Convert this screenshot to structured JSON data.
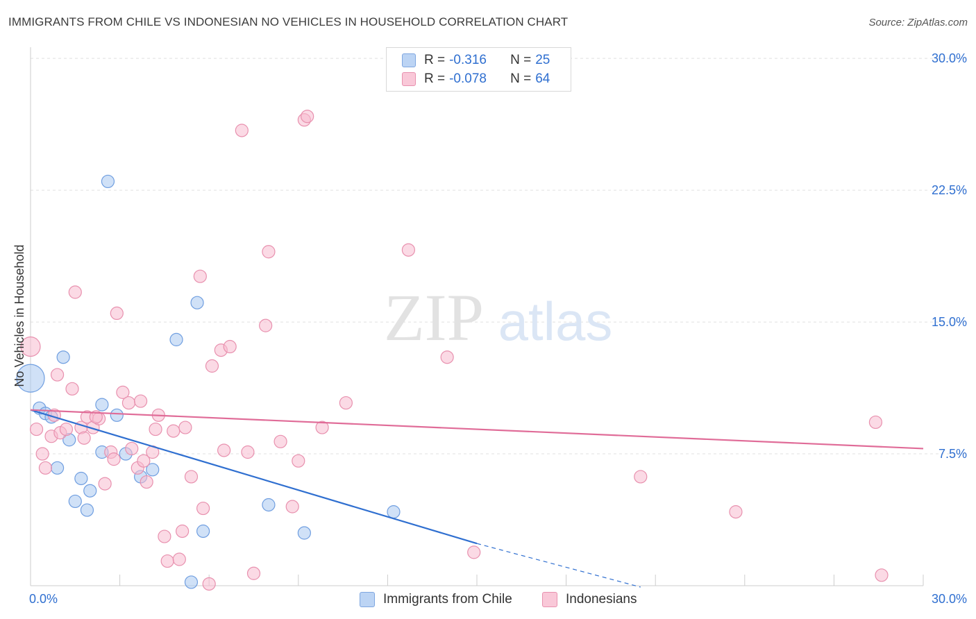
{
  "title": "IMMIGRANTS FROM CHILE VS INDONESIAN NO VEHICLES IN HOUSEHOLD CORRELATION CHART",
  "source": "Source: ZipAtlas.com",
  "watermark": {
    "zip": "ZIP",
    "atlas": "atlas"
  },
  "legend": {
    "rows": [
      {
        "r_label": "R =",
        "r_value": "-0.316",
        "n_label": "N =",
        "n_value": "25"
      },
      {
        "r_label": "R =",
        "r_value": "-0.078",
        "n_label": "N =",
        "n_value": "64"
      }
    ]
  },
  "chart_data": {
    "type": "scatter",
    "ylabel": "No Vehicles in Household",
    "xlabel": "",
    "xlim": [
      0,
      30
    ],
    "ylim": [
      0,
      30
    ],
    "x_tick_labels": [
      {
        "value": 0,
        "label": "0.0%"
      },
      {
        "value": 30,
        "label": "30.0%"
      }
    ],
    "y_tick_labels": [
      {
        "value": 7.5,
        "label": "7.5%"
      },
      {
        "value": 15,
        "label": "15.0%"
      },
      {
        "value": 22.5,
        "label": "22.5%"
      },
      {
        "value": 30,
        "label": "30.0%"
      }
    ],
    "grid": true,
    "series": [
      {
        "name": "Immigrants from Chile",
        "color": "#a9c8f0",
        "stroke": "#6f9ee0",
        "trend_color": "#2f6fd0",
        "trend": {
          "x_start": 0,
          "y_start": 10.0,
          "x_end": 15,
          "y_end": 2.4,
          "dashed_to_x": 20.5,
          "dashed_to_y": -0.4
        },
        "points": [
          {
            "x": 0.0,
            "y": 11.8,
            "size": "large"
          },
          {
            "x": 0.3,
            "y": 10.1
          },
          {
            "x": 0.5,
            "y": 9.8
          },
          {
            "x": 0.7,
            "y": 9.6
          },
          {
            "x": 0.9,
            "y": 6.7
          },
          {
            "x": 1.1,
            "y": 13.0
          },
          {
            "x": 1.3,
            "y": 8.3
          },
          {
            "x": 1.7,
            "y": 6.1
          },
          {
            "x": 1.5,
            "y": 4.8
          },
          {
            "x": 1.9,
            "y": 4.3
          },
          {
            "x": 2.0,
            "y": 5.4
          },
          {
            "x": 2.4,
            "y": 10.3
          },
          {
            "x": 2.6,
            "y": 23.0
          },
          {
            "x": 2.9,
            "y": 9.7
          },
          {
            "x": 2.4,
            "y": 7.6
          },
          {
            "x": 3.2,
            "y": 7.5
          },
          {
            "x": 3.7,
            "y": 6.2
          },
          {
            "x": 4.1,
            "y": 6.6
          },
          {
            "x": 4.9,
            "y": 14.0
          },
          {
            "x": 5.6,
            "y": 16.1
          },
          {
            "x": 5.8,
            "y": 3.1
          },
          {
            "x": 5.4,
            "y": 0.2
          },
          {
            "x": 8.0,
            "y": 4.6
          },
          {
            "x": 9.2,
            "y": 3.0
          },
          {
            "x": 12.2,
            "y": 4.2
          }
        ]
      },
      {
        "name": "Indonesians",
        "color": "#f7bcd0",
        "stroke": "#e890ae",
        "trend_color": "#e06c98",
        "trend": {
          "x_start": 0,
          "y_start": 10.0,
          "x_end": 30,
          "y_end": 7.8
        },
        "points": [
          {
            "x": 0.0,
            "y": 13.6,
            "size": "medium"
          },
          {
            "x": 0.2,
            "y": 8.9
          },
          {
            "x": 0.4,
            "y": 7.5
          },
          {
            "x": 0.5,
            "y": 6.7
          },
          {
            "x": 0.7,
            "y": 8.5
          },
          {
            "x": 0.8,
            "y": 9.7
          },
          {
            "x": 0.9,
            "y": 12.0
          },
          {
            "x": 1.0,
            "y": 8.7
          },
          {
            "x": 1.2,
            "y": 8.9
          },
          {
            "x": 1.4,
            "y": 11.2
          },
          {
            "x": 1.5,
            "y": 16.7
          },
          {
            "x": 1.7,
            "y": 9.0
          },
          {
            "x": 1.8,
            "y": 8.4
          },
          {
            "x": 1.9,
            "y": 9.6
          },
          {
            "x": 2.1,
            "y": 9.0
          },
          {
            "x": 2.3,
            "y": 9.5
          },
          {
            "x": 2.5,
            "y": 5.8
          },
          {
            "x": 2.7,
            "y": 7.6
          },
          {
            "x": 2.8,
            "y": 7.2
          },
          {
            "x": 2.9,
            "y": 15.5
          },
          {
            "x": 3.1,
            "y": 11.0
          },
          {
            "x": 3.3,
            "y": 10.4
          },
          {
            "x": 3.4,
            "y": 7.8
          },
          {
            "x": 3.6,
            "y": 6.7
          },
          {
            "x": 3.7,
            "y": 10.5
          },
          {
            "x": 3.8,
            "y": 7.1
          },
          {
            "x": 3.9,
            "y": 5.9
          },
          {
            "x": 4.1,
            "y": 7.6
          },
          {
            "x": 4.2,
            "y": 8.9
          },
          {
            "x": 4.3,
            "y": 9.7
          },
          {
            "x": 4.5,
            "y": 2.8
          },
          {
            "x": 4.6,
            "y": 1.4
          },
          {
            "x": 4.8,
            "y": 8.8
          },
          {
            "x": 5.0,
            "y": 1.5
          },
          {
            "x": 5.1,
            "y": 3.1
          },
          {
            "x": 5.2,
            "y": 9.0
          },
          {
            "x": 5.4,
            "y": 6.2
          },
          {
            "x": 5.7,
            "y": 17.6
          },
          {
            "x": 5.8,
            "y": 4.4
          },
          {
            "x": 6.0,
            "y": 0.1
          },
          {
            "x": 6.1,
            "y": 12.5
          },
          {
            "x": 6.4,
            "y": 13.4
          },
          {
            "x": 6.5,
            "y": 7.7
          },
          {
            "x": 6.7,
            "y": 13.6
          },
          {
            "x": 7.1,
            "y": 25.9
          },
          {
            "x": 7.3,
            "y": 7.6
          },
          {
            "x": 7.5,
            "y": 0.7
          },
          {
            "x": 7.9,
            "y": 14.8
          },
          {
            "x": 8.0,
            "y": 19.0
          },
          {
            "x": 8.4,
            "y": 8.2
          },
          {
            "x": 8.8,
            "y": 4.5
          },
          {
            "x": 9.0,
            "y": 7.1
          },
          {
            "x": 9.2,
            "y": 26.5
          },
          {
            "x": 9.3,
            "y": 26.7
          },
          {
            "x": 9.8,
            "y": 9.0
          },
          {
            "x": 10.6,
            "y": 10.4
          },
          {
            "x": 12.7,
            "y": 19.1
          },
          {
            "x": 14.0,
            "y": 13.0
          },
          {
            "x": 14.9,
            "y": 1.9
          },
          {
            "x": 20.5,
            "y": 6.2
          },
          {
            "x": 23.7,
            "y": 4.2
          },
          {
            "x": 28.4,
            "y": 9.3
          },
          {
            "x": 28.6,
            "y": 0.6
          },
          {
            "x": 2.2,
            "y": 9.6
          }
        ]
      }
    ]
  }
}
